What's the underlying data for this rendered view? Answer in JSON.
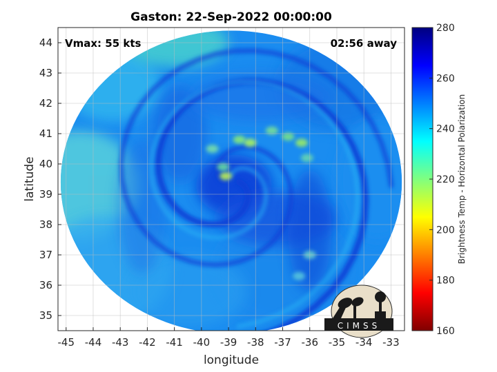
{
  "chart_data": {
    "type": "heatmap",
    "title": "Gaston: 22-Sep-2022 00:00:00",
    "xlabel": "longitude",
    "ylabel": "latitude",
    "xlim": [
      -45.3,
      -32.5
    ],
    "ylim": [
      34.5,
      44.5
    ],
    "xticks": [
      -45,
      -44,
      -43,
      -42,
      -41,
      -40,
      -39,
      -38,
      -37,
      -36,
      -35,
      -34,
      -33
    ],
    "yticks": [
      35,
      36,
      37,
      38,
      39,
      40,
      41,
      42,
      43,
      44
    ],
    "grid": true,
    "annotations": {
      "left": "Vmax: 55 kts",
      "right": "02:56 away"
    },
    "colorbar": {
      "label": "Brightness Temp - Horizontal Polarization",
      "range": [
        160,
        280
      ],
      "ticks": [
        160,
        180,
        200,
        220,
        240,
        260,
        280
      ],
      "colormap": "jet"
    },
    "storm_center": {
      "lon": -38.9,
      "lat": 39.4
    },
    "swath": {
      "center_lon": -38.9,
      "center_lat": 39.4,
      "radius_lon": 6.3,
      "radius_lat": 5.0
    },
    "logo_text": "CIMSS"
  }
}
